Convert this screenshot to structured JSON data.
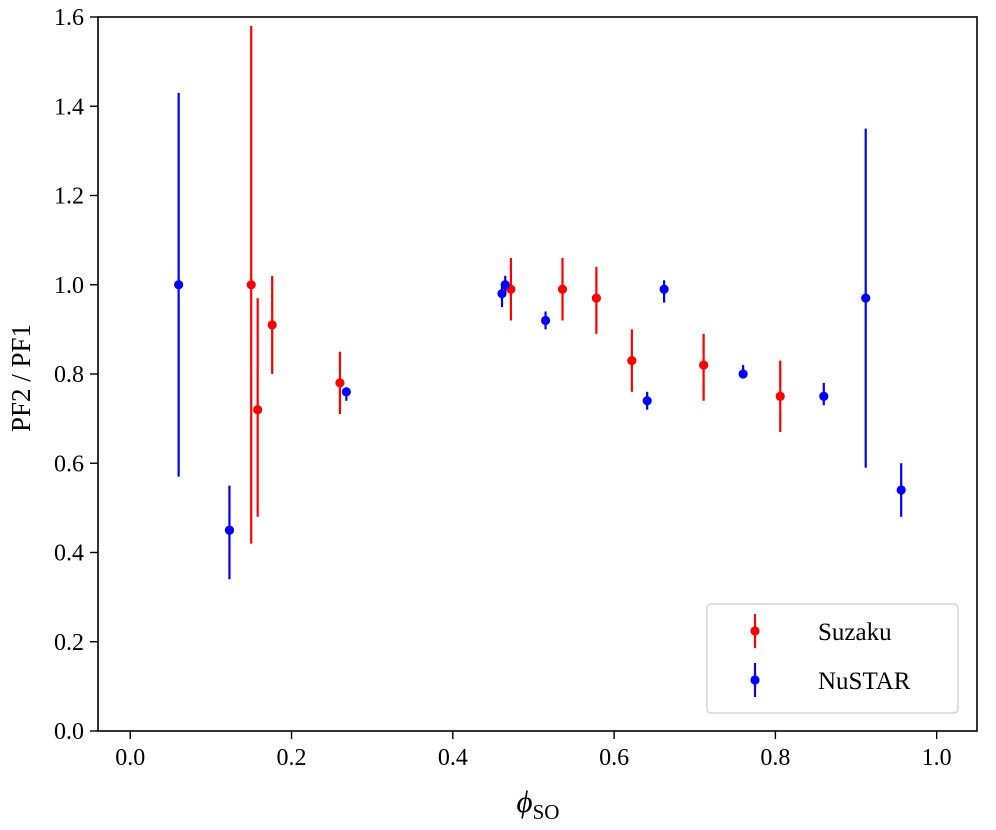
{
  "chart_data": {
    "type": "scatter",
    "title": "",
    "xlabel": "ϕ",
    "xlabel_subscript": "SO",
    "ylabel": "PF2 / PF1",
    "xlim": [
      -0.04,
      1.05
    ],
    "ylim": [
      0.0,
      1.6
    ],
    "xticks": [
      0.0,
      0.2,
      0.4,
      0.6,
      0.8,
      1.0
    ],
    "xtick_labels": [
      "0.0",
      "0.2",
      "0.4",
      "0.6",
      "0.8",
      "1.0"
    ],
    "yticks": [
      0.0,
      0.2,
      0.4,
      0.6,
      0.8,
      1.0,
      1.2,
      1.4,
      1.6
    ],
    "ytick_labels": [
      "0.0",
      "0.2",
      "0.4",
      "0.6",
      "0.8",
      "1.0",
      "1.2",
      "1.4",
      "1.6"
    ],
    "grid": false,
    "legend_position": "bottom-right",
    "series": [
      {
        "name": "Suzaku",
        "color": "#ff0000",
        "points": [
          {
            "x": 0.15,
            "y": 1.0,
            "lo": 0.42,
            "hi": 1.58
          },
          {
            "x": 0.158,
            "y": 0.72,
            "lo": 0.48,
            "hi": 0.97
          },
          {
            "x": 0.176,
            "y": 0.91,
            "lo": 0.8,
            "hi": 1.02
          },
          {
            "x": 0.26,
            "y": 0.78,
            "lo": 0.71,
            "hi": 0.85
          },
          {
            "x": 0.472,
            "y": 0.99,
            "lo": 0.92,
            "hi": 1.06
          },
          {
            "x": 0.536,
            "y": 0.99,
            "lo": 0.92,
            "hi": 1.06
          },
          {
            "x": 0.578,
            "y": 0.97,
            "lo": 0.89,
            "hi": 1.04
          },
          {
            "x": 0.622,
            "y": 0.83,
            "lo": 0.76,
            "hi": 0.9
          },
          {
            "x": 0.711,
            "y": 0.82,
            "lo": 0.74,
            "hi": 0.89
          },
          {
            "x": 0.806,
            "y": 0.75,
            "lo": 0.67,
            "hi": 0.83
          }
        ]
      },
      {
        "name": "NuSTAR",
        "color": "#0000ff",
        "points": [
          {
            "x": 0.06,
            "y": 1.0,
            "lo": 0.57,
            "hi": 1.43
          },
          {
            "x": 0.123,
            "y": 0.45,
            "lo": 0.34,
            "hi": 0.55
          },
          {
            "x": 0.268,
            "y": 0.76,
            "lo": 0.74,
            "hi": 0.77
          },
          {
            "x": 0.461,
            "y": 0.98,
            "lo": 0.95,
            "hi": 1.0
          },
          {
            "x": 0.465,
            "y": 1.0,
            "lo": 0.98,
            "hi": 1.02
          },
          {
            "x": 0.515,
            "y": 0.92,
            "lo": 0.9,
            "hi": 0.94
          },
          {
            "x": 0.641,
            "y": 0.74,
            "lo": 0.72,
            "hi": 0.76
          },
          {
            "x": 0.662,
            "y": 0.99,
            "lo": 0.96,
            "hi": 1.01
          },
          {
            "x": 0.76,
            "y": 0.8,
            "lo": 0.79,
            "hi": 0.82
          },
          {
            "x": 0.86,
            "y": 0.75,
            "lo": 0.73,
            "hi": 0.78
          },
          {
            "x": 0.912,
            "y": 0.97,
            "lo": 0.59,
            "hi": 1.35
          },
          {
            "x": 0.956,
            "y": 0.54,
            "lo": 0.48,
            "hi": 0.6
          }
        ]
      }
    ]
  }
}
